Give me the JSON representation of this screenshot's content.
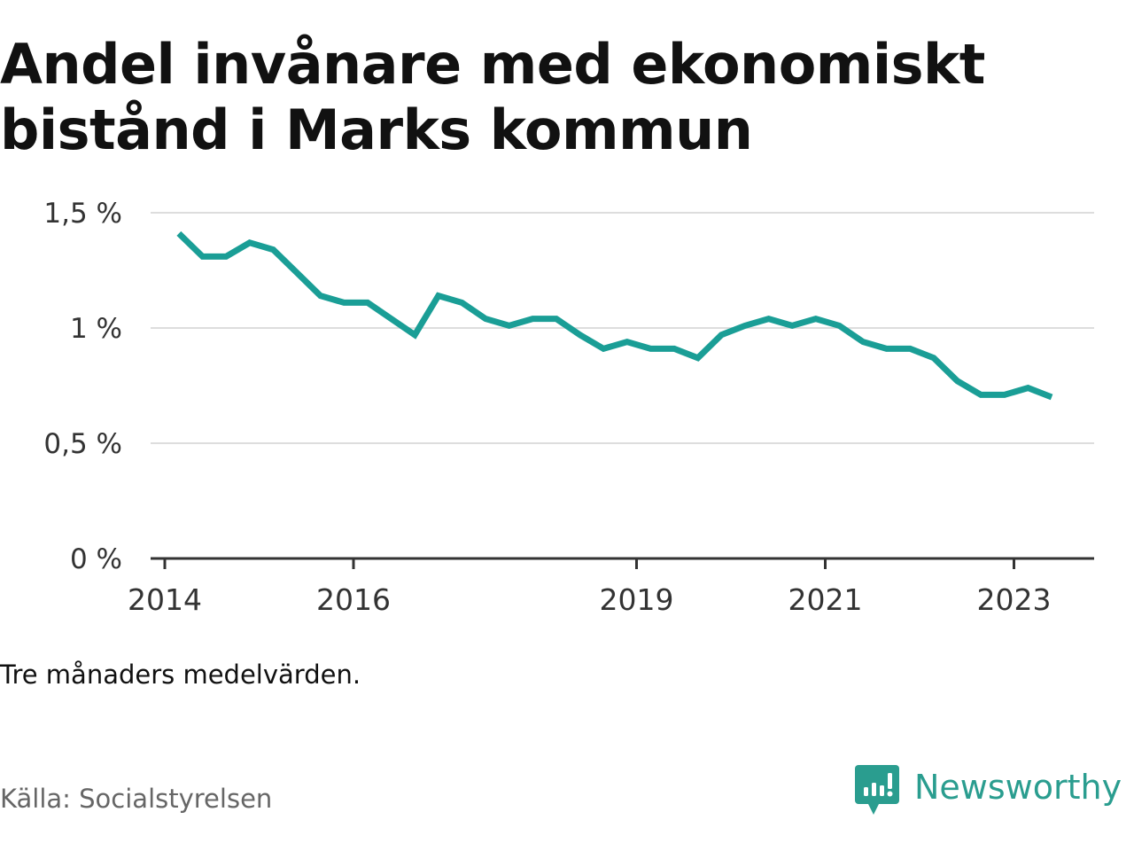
{
  "title": "Andel invånare med ekonomiskt bistånd i Marks kommun",
  "note": "Tre månaders medelvärden.",
  "source": "Källa: Socialstyrelsen",
  "brand": {
    "name": "Newsworthy",
    "icon": "newsworthy-logo-icon",
    "color": "#2a9d8f"
  },
  "colors": {
    "line": "#1a9e96",
    "grid": "#dddddd",
    "axis": "#333333"
  },
  "chart_data": {
    "type": "line",
    "title": "Andel invånare med ekonomiskt bistånd i Marks kommun",
    "xlabel": "",
    "ylabel": "",
    "ylim": [
      0,
      1.5
    ],
    "xlim": [
      2014.0,
      2024.0
    ],
    "grid": true,
    "yticks": [
      0,
      0.5,
      1,
      1.5
    ],
    "ytick_labels": [
      "0 %",
      "0,5 %",
      "1 %",
      "1,5 %"
    ],
    "xticks": [
      2014,
      2016,
      2019,
      2021,
      2023
    ],
    "xtick_labels": [
      "2014",
      "2016",
      "2019",
      "2021",
      "2023"
    ],
    "series": [
      {
        "x": [
          2014.3,
          2014.55,
          2014.8,
          2015.05,
          2015.3,
          2015.55,
          2015.8,
          2016.05,
          2016.3,
          2016.55,
          2016.8,
          2017.05,
          2017.3,
          2017.55,
          2017.8,
          2018.05,
          2018.3,
          2018.55,
          2018.8,
          2019.05,
          2019.3,
          2019.55,
          2019.8,
          2020.05,
          2020.3,
          2020.55,
          2020.8,
          2021.05,
          2021.3,
          2021.55,
          2021.8,
          2022.05,
          2022.3,
          2022.55,
          2022.8,
          2023.05,
          2023.3,
          2023.55
        ],
        "values": [
          1.41,
          1.31,
          1.31,
          1.37,
          1.34,
          1.24,
          1.14,
          1.11,
          1.11,
          1.04,
          0.97,
          1.14,
          1.11,
          1.04,
          1.01,
          1.04,
          1.04,
          0.97,
          0.91,
          0.94,
          0.91,
          0.91,
          0.87,
          0.97,
          1.01,
          1.04,
          1.01,
          1.04,
          1.01,
          0.94,
          0.91,
          0.91,
          0.87,
          0.77,
          0.71,
          0.71,
          0.74,
          0.7
        ]
      }
    ]
  }
}
